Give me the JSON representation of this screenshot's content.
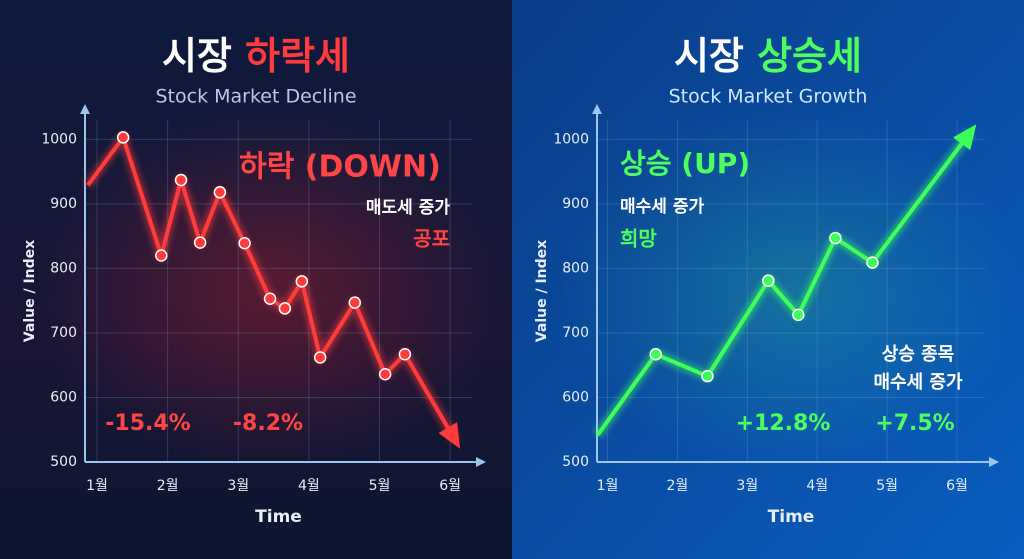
{
  "chart_data": [
    {
      "type": "line",
      "title": [
        "시장",
        "하락세"
      ],
      "subtitle": "Stock Market Decline",
      "y_label": "Value / Index",
      "x_label": "Time",
      "annotations": [
        "하락 (DOWN)",
        "매도세 증가",
        "공포",
        "-15.4%",
        "-8.2%"
      ],
      "x": [
        0.87,
        1.37,
        1.91,
        2.19,
        2.46,
        2.74,
        3.09,
        3.45,
        3.66,
        3.9,
        4.16,
        4.65,
        5.08,
        5.36,
        6.07
      ],
      "series": [
        {
          "color": "#ff3b3b",
          "values": [
            929,
            1003,
            820,
            937,
            840,
            918,
            839,
            753,
            738,
            780,
            662,
            747,
            636,
            667,
            534
          ]
        }
      ],
      "xlim": [
        0.83,
        6.31
      ],
      "xticks": [
        {
          "value": 1,
          "label": "1월"
        },
        {
          "value": 2,
          "label": "2월"
        },
        {
          "value": 3,
          "label": "3월"
        },
        {
          "value": 4,
          "label": "4월"
        },
        {
          "value": 5,
          "label": "5월"
        },
        {
          "value": 6,
          "label": "6월"
        }
      ],
      "ylim": [
        500,
        1030
      ],
      "yticks": [
        500,
        600,
        700,
        800,
        900,
        1000
      ],
      "grid": true
    },
    {
      "type": "line",
      "title": [
        "시장",
        "상승세"
      ],
      "subtitle": "Stock Market Growth",
      "y_label": "Value / Index",
      "x_label": "Time",
      "annotations": [
        "상승 (UP)",
        "매수세 증가",
        "희망",
        "상승 종목",
        "매수세 증가",
        "+12.8%",
        "+7.5%"
      ],
      "x": [
        0.86,
        1.69,
        2.43,
        3.3,
        3.73,
        4.26,
        4.79,
        6.19
      ],
      "series": [
        {
          "color": "#3dff5a",
          "values": [
            542,
            667,
            633,
            781,
            728,
            847,
            809,
            1011
          ]
        }
      ],
      "xlim": [
        0.85,
        6.4
      ],
      "xticks": [
        {
          "value": 1,
          "label": "1월"
        },
        {
          "value": 2,
          "label": "2월"
        },
        {
          "value": 3,
          "label": "3월"
        },
        {
          "value": 4,
          "label": "4월"
        },
        {
          "value": 5,
          "label": "5월"
        },
        {
          "value": 6,
          "label": "6월"
        }
      ],
      "ylim": [
        500,
        1030
      ],
      "yticks": [
        500,
        600,
        700,
        800,
        900,
        1000
      ],
      "grid": true
    }
  ]
}
